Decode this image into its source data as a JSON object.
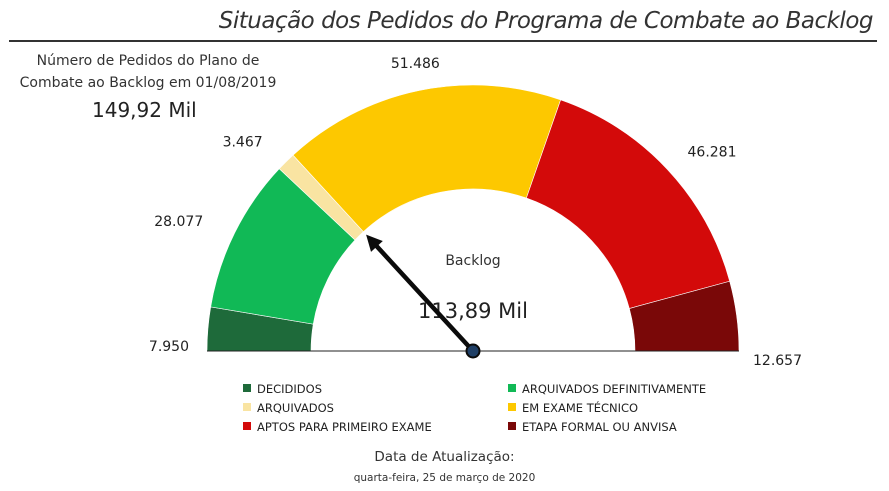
{
  "title": "Situação dos Pedidos do Programa de Combate ao Backlog",
  "total": {
    "caption": "Número de Pedidos do Plano de Combate ao Backlog em 01/08/2019",
    "value": "149,92 Mil"
  },
  "update": {
    "label": "Data de Atualização:",
    "date": "quarta-feira, 25 de março de 2020"
  },
  "chart_data": {
    "type": "gauge",
    "segments": [
      {
        "name": "DECIDIDOS",
        "value": 7950,
        "label": "7.950",
        "color": "#1e6a3a"
      },
      {
        "name": "ARQUIVADOS DEFINITIVAMENTE",
        "value": 28077,
        "label": "28.077",
        "color": "#11b956"
      },
      {
        "name": "ARQUIVADOS",
        "value": 3467,
        "label": "3.467",
        "color": "#f9e4a2"
      },
      {
        "name": "EM EXAME TÉCNICO",
        "value": 51486,
        "label": "51.486",
        "color": "#fdc800"
      },
      {
        "name": "APTOS PARA PRIMEIRO EXAME",
        "value": 46281,
        "label": "46.281",
        "color": "#d30a0a"
      },
      {
        "name": "ETAPA FORMAL OU ANVISA",
        "value": 12657,
        "label": "12.657",
        "color": "#7a0808"
      }
    ],
    "needle": {
      "label": "Backlog",
      "value_label": "113,89 Mil",
      "value": 39494,
      "color": "#0b0b0b",
      "hub_color": "#1f3f66"
    }
  }
}
